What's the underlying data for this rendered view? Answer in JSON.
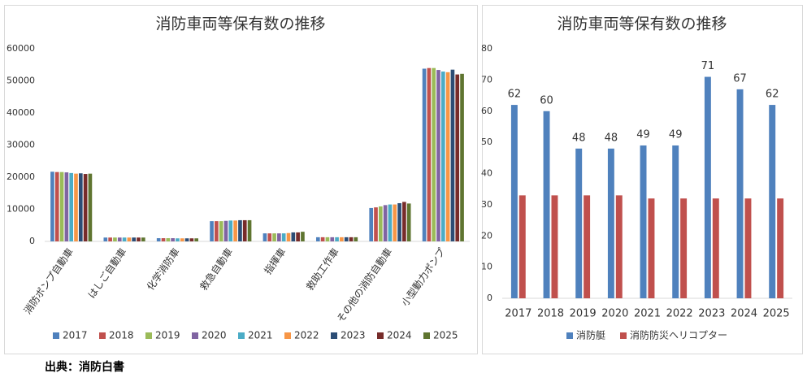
{
  "chart_data": [
    {
      "type": "bar",
      "title": "消防車両等保有数の推移",
      "categories": [
        "消防ポンプ自動車",
        "はしご自動車",
        "化学消防車",
        "救急自動車",
        "指揮車",
        "救助工作車",
        "その他の消防自動車",
        "小型動力ポンプ"
      ],
      "series": [
        {
          "name": "2017",
          "color": "#4f81bd",
          "values": [
            21700,
            1200,
            1000,
            6300,
            2500,
            1300,
            10400,
            53800
          ]
        },
        {
          "name": "2018",
          "color": "#c0504d",
          "values": [
            21600,
            1200,
            1000,
            6300,
            2500,
            1300,
            10600,
            54000
          ]
        },
        {
          "name": "2019",
          "color": "#9bbb59",
          "values": [
            21600,
            1200,
            1000,
            6300,
            2500,
            1300,
            10900,
            54000
          ]
        },
        {
          "name": "2020",
          "color": "#8064a2",
          "values": [
            21500,
            1200,
            1000,
            6400,
            2500,
            1300,
            11300,
            53400
          ]
        },
        {
          "name": "2021",
          "color": "#4bacc6",
          "values": [
            21300,
            1200,
            950,
            6500,
            2500,
            1300,
            11500,
            52900
          ]
        },
        {
          "name": "2022",
          "color": "#f79646",
          "values": [
            21100,
            1200,
            950,
            6500,
            2600,
            1300,
            11500,
            52700
          ]
        },
        {
          "name": "2023",
          "color": "#2c4d75",
          "values": [
            21200,
            1200,
            950,
            6600,
            2800,
            1300,
            11900,
            53500
          ]
        },
        {
          "name": "2024",
          "color": "#772c2a",
          "values": [
            21000,
            1200,
            950,
            6600,
            2800,
            1300,
            12300,
            52000
          ]
        },
        {
          "name": "2025",
          "color": "#5f7530",
          "values": [
            21100,
            1200,
            950,
            6600,
            3000,
            1300,
            11800,
            52200
          ]
        }
      ],
      "ylim": [
        0,
        60000
      ],
      "yticks": [
        0,
        10000,
        20000,
        30000,
        40000,
        50000,
        60000
      ],
      "grid": false,
      "legend": "bottom"
    },
    {
      "type": "bar",
      "title": "消防車両等保有数の推移",
      "categories": [
        "2017",
        "2018",
        "2019",
        "2020",
        "2021",
        "2022",
        "2023",
        "2024",
        "2025"
      ],
      "series": [
        {
          "name": "消防艇",
          "color": "#4f81bd",
          "values": [
            62,
            60,
            48,
            48,
            49,
            49,
            71,
            67,
            62
          ],
          "data_labels": true
        },
        {
          "name": "消防防災ヘリコプター",
          "color": "#c0504d",
          "values": [
            33,
            33,
            33,
            33,
            32,
            32,
            32,
            32,
            32
          ]
        }
      ],
      "ylim": [
        0,
        80
      ],
      "yticks": [
        0,
        10,
        20,
        30,
        40,
        50,
        60,
        70,
        80
      ],
      "grid": false,
      "legend": "bottom"
    }
  ],
  "source": "出典：消防白書"
}
